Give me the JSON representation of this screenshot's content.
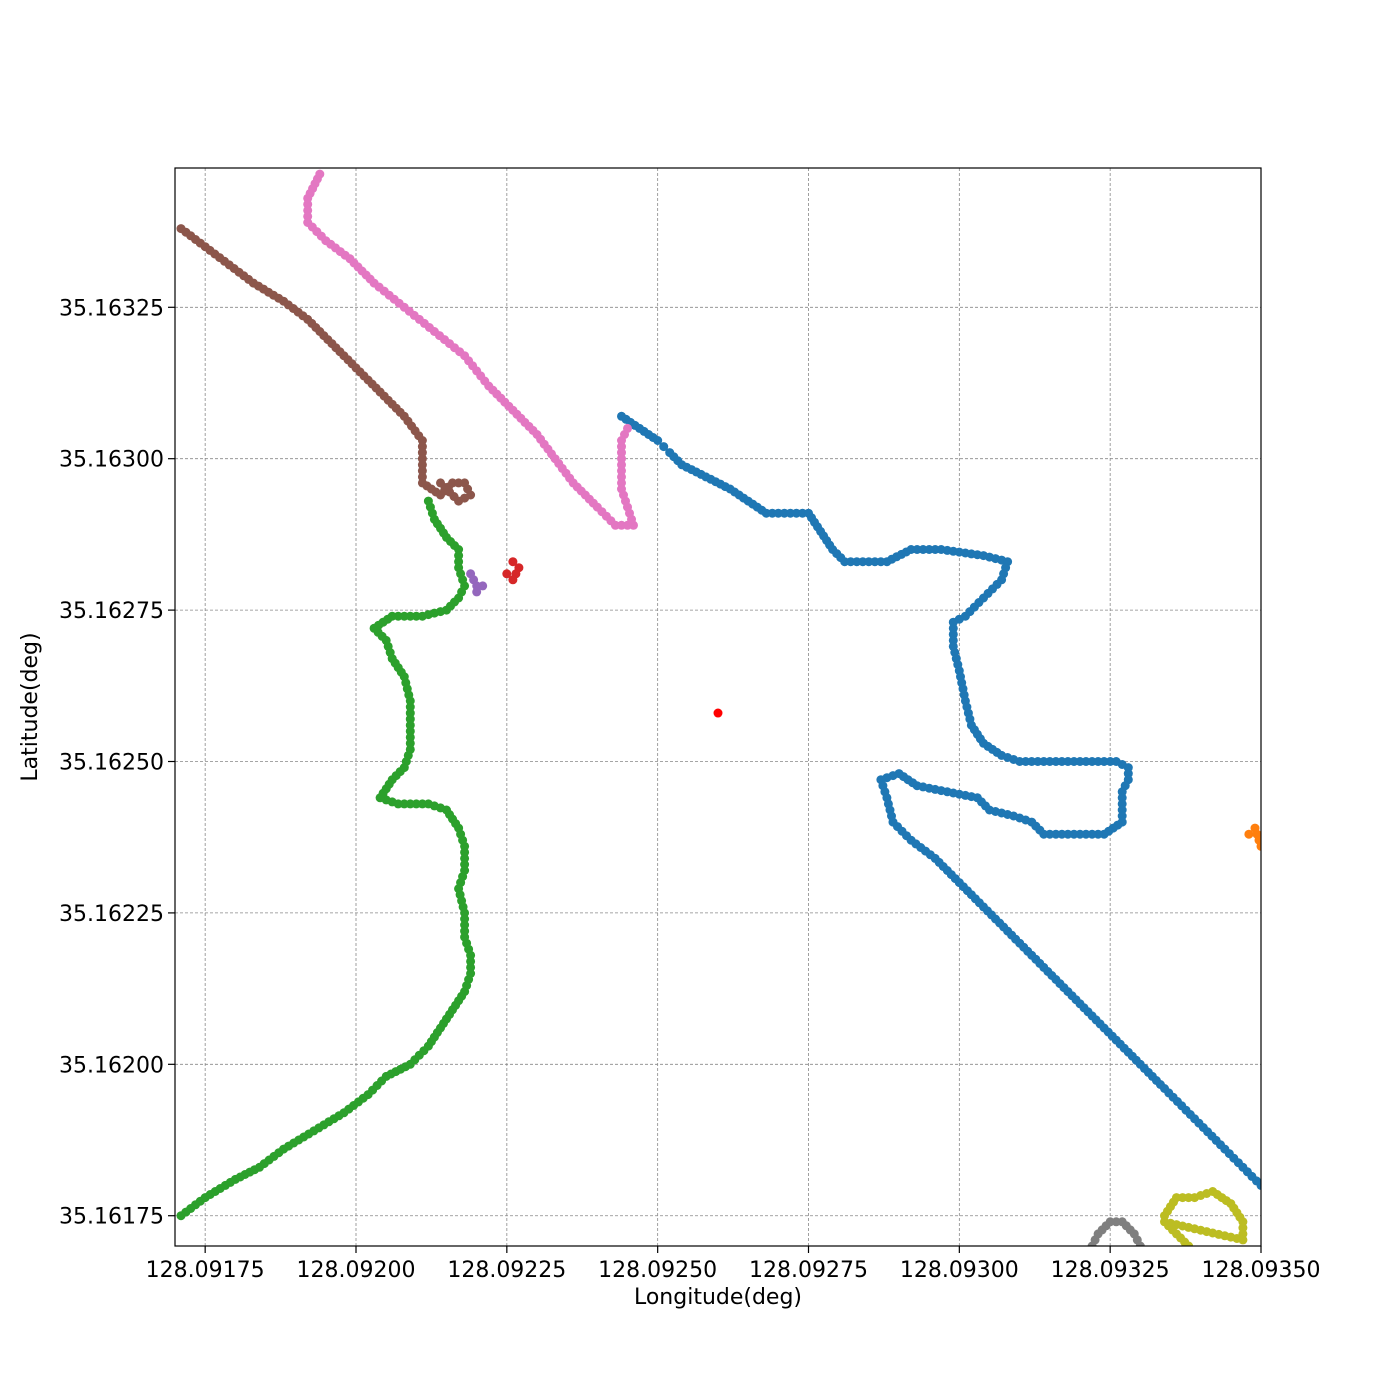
{
  "chart_data": {
    "type": "scatter",
    "xlabel": "Longitude(deg)",
    "ylabel": "Latitude(deg)",
    "xlim": [
      128.0917,
      128.0935
    ],
    "ylim": [
      35.1617,
      35.16348
    ],
    "grid": true,
    "x_ticks": [
      128.09175,
      128.092,
      128.09225,
      128.0925,
      128.09275,
      128.093,
      128.09325,
      128.0935
    ],
    "x_tick_labels": [
      "128.09175",
      "128.09200",
      "128.09225",
      "128.09250",
      "128.09275",
      "128.09300",
      "128.09325",
      "128.09350"
    ],
    "y_ticks": [
      35.16175,
      35.162,
      35.16225,
      35.1625,
      35.16275,
      35.163,
      35.16325
    ],
    "y_tick_labels": [
      "35.16175",
      "35.16200",
      "35.16225",
      "35.16250",
      "35.16275",
      "35.16300",
      "35.16325"
    ],
    "center_point": {
      "x": 128.0926,
      "y": 35.16258,
      "color": "#ff0000"
    },
    "series": [
      {
        "color": "#1f77b4",
        "points": [
          [
            128.09244,
            35.16307
          ],
          [
            128.09247,
            35.16305
          ],
          [
            128.0925,
            35.16303
          ],
          [
            128.09251,
            35.16302
          ],
          [
            128.09252,
            35.16301
          ],
          [
            128.09254,
            35.16299
          ],
          [
            128.09258,
            35.16297
          ],
          [
            128.09262,
            35.16295
          ],
          [
            128.09265,
            35.16293
          ],
          [
            128.09268,
            35.16291
          ],
          [
            128.09275,
            35.16291
          ],
          [
            128.09277,
            35.16288
          ],
          [
            128.09279,
            35.16285
          ],
          [
            128.09281,
            35.16283
          ],
          [
            128.09288,
            35.16283
          ],
          [
            128.09292,
            35.16285
          ],
          [
            128.09297,
            35.16285
          ],
          [
            128.09304,
            35.16284
          ],
          [
            128.09308,
            35.16283
          ],
          [
            128.09307,
            35.1628
          ],
          [
            128.09304,
            35.16277
          ],
          [
            128.09301,
            35.16274
          ],
          [
            128.09299,
            35.16273
          ],
          [
            128.09299,
            35.16269
          ],
          [
            128.093,
            35.16265
          ],
          [
            128.09301,
            35.1626
          ],
          [
            128.09302,
            35.16256
          ],
          [
            128.09304,
            35.16253
          ],
          [
            128.09307,
            35.16251
          ],
          [
            128.0931,
            35.1625
          ],
          [
            128.0932,
            35.1625
          ],
          [
            128.09326,
            35.1625
          ],
          [
            128.09328,
            35.16249
          ],
          [
            128.09328,
            35.16247
          ],
          [
            128.09327,
            35.16245
          ],
          [
            128.09327,
            35.1624
          ],
          [
            128.09324,
            35.16238
          ],
          [
            128.09318,
            35.16238
          ],
          [
            128.09314,
            35.16238
          ],
          [
            128.09312,
            35.1624
          ],
          [
            128.09309,
            35.16241
          ],
          [
            128.09305,
            35.16242
          ],
          [
            128.09303,
            35.16244
          ],
          [
            128.09298,
            35.16245
          ],
          [
            128.09293,
            35.16246
          ],
          [
            128.0929,
            35.16248
          ],
          [
            128.09287,
            35.16247
          ],
          [
            128.09288,
            35.16244
          ],
          [
            128.09289,
            35.1624
          ],
          [
            128.09292,
            35.16237
          ],
          [
            128.09296,
            35.16234
          ],
          [
            128.093,
            35.1623
          ],
          [
            128.09304,
            35.16226
          ],
          [
            128.0931,
            35.1622
          ],
          [
            128.09316,
            35.16214
          ],
          [
            128.09322,
            35.16208
          ],
          [
            128.09328,
            35.16202
          ],
          [
            128.09334,
            35.16196
          ],
          [
            128.09339,
            35.16191
          ],
          [
            128.09344,
            35.16186
          ],
          [
            128.09347,
            35.16183
          ],
          [
            128.0935,
            35.1618
          ]
        ]
      },
      {
        "color": "#ff7f0e",
        "points": [
          [
            128.09348,
            35.16238
          ],
          [
            128.09349,
            35.16239
          ],
          [
            128.0935,
            35.16236
          ]
        ]
      },
      {
        "color": "#2ca02c",
        "points": [
          [
            128.09171,
            35.16175
          ],
          [
            128.09175,
            35.16178
          ],
          [
            128.0918,
            35.16181
          ],
          [
            128.09184,
            35.16183
          ],
          [
            128.09188,
            35.16186
          ],
          [
            128.09193,
            35.16189
          ],
          [
            128.09198,
            35.16192
          ],
          [
            128.09202,
            35.16195
          ],
          [
            128.09205,
            35.16198
          ],
          [
            128.09209,
            35.162
          ],
          [
            128.09212,
            35.16203
          ],
          [
            128.09214,
            35.16206
          ],
          [
            128.09216,
            35.16209
          ],
          [
            128.09218,
            35.16212
          ],
          [
            128.09219,
            35.16215
          ],
          [
            128.09219,
            35.16218
          ],
          [
            128.09218,
            35.16221
          ],
          [
            128.09218,
            35.16225
          ],
          [
            128.09217,
            35.16229
          ],
          [
            128.09218,
            35.16232
          ],
          [
            128.09218,
            35.16236
          ],
          [
            128.09217,
            35.16239
          ],
          [
            128.09215,
            35.16242
          ],
          [
            128.09212,
            35.16243
          ],
          [
            128.09207,
            35.16243
          ],
          [
            128.09204,
            35.16244
          ],
          [
            128.09206,
            35.16247
          ],
          [
            128.09208,
            35.16249
          ],
          [
            128.09209,
            35.16252
          ],
          [
            128.09209,
            35.16256
          ],
          [
            128.09209,
            35.1626
          ],
          [
            128.09208,
            35.16264
          ],
          [
            128.09206,
            35.16267
          ],
          [
            128.09205,
            35.1627
          ],
          [
            128.09203,
            35.16272
          ],
          [
            128.09206,
            35.16274
          ],
          [
            128.09211,
            35.16274
          ],
          [
            128.09215,
            35.16275
          ],
          [
            128.09217,
            35.16277
          ],
          [
            128.09218,
            35.16279
          ],
          [
            128.09217,
            35.16282
          ],
          [
            128.09217,
            35.16285
          ],
          [
            128.09215,
            35.16287
          ],
          [
            128.09213,
            35.1629
          ],
          [
            128.09212,
            35.16293
          ]
        ]
      },
      {
        "color": "#d62728",
        "points": [
          [
            128.09226,
            35.16283
          ],
          [
            128.09227,
            35.16282
          ],
          [
            128.09226,
            35.1628
          ],
          [
            128.09225,
            35.16281
          ]
        ]
      },
      {
        "color": "#9467bd",
        "points": [
          [
            128.09219,
            35.16281
          ],
          [
            128.0922,
            35.16279
          ],
          [
            128.09221,
            35.16279
          ],
          [
            128.0922,
            35.16278
          ]
        ]
      },
      {
        "color": "#8c564b",
        "points": [
          [
            128.09171,
            35.16338
          ],
          [
            128.09175,
            35.16335
          ],
          [
            128.09179,
            35.16332
          ],
          [
            128.09183,
            35.16329
          ],
          [
            128.09188,
            35.16326
          ],
          [
            128.09192,
            35.16323
          ],
          [
            128.09196,
            35.16319
          ],
          [
            128.092,
            35.16315
          ],
          [
            128.09204,
            35.16311
          ],
          [
            128.09208,
            35.16307
          ],
          [
            128.09211,
            35.16303
          ],
          [
            128.09211,
            35.16299
          ],
          [
            128.09211,
            35.16296
          ],
          [
            128.09214,
            35.16294
          ],
          [
            128.09216,
            35.16296
          ],
          [
            128.09218,
            35.16296
          ],
          [
            128.09219,
            35.16294
          ],
          [
            128.09217,
            35.16293
          ],
          [
            128.09214,
            35.16296
          ]
        ]
      },
      {
        "color": "#e377c2",
        "points": [
          [
            128.09194,
            35.16347
          ],
          [
            128.09192,
            35.16343
          ],
          [
            128.09192,
            35.16339
          ],
          [
            128.09195,
            35.16336
          ],
          [
            128.09199,
            35.16333
          ],
          [
            128.09203,
            35.16329
          ],
          [
            128.09208,
            35.16325
          ],
          [
            128.09213,
            35.16321
          ],
          [
            128.09218,
            35.16317
          ],
          [
            128.09222,
            35.16312
          ],
          [
            128.09226,
            35.16308
          ],
          [
            128.0923,
            35.16304
          ],
          [
            128.09233,
            35.163
          ],
          [
            128.09236,
            35.16296
          ],
          [
            128.0924,
            35.16292
          ],
          [
            128.09243,
            35.16289
          ],
          [
            128.09246,
            35.16289
          ],
          [
            128.09245,
            35.16292
          ],
          [
            128.09244,
            35.16295
          ],
          [
            128.09244,
            35.16299
          ],
          [
            128.09244,
            35.16303
          ],
          [
            128.09245,
            35.16305
          ]
        ]
      },
      {
        "color": "#7f7f7f",
        "points": [
          [
            128.09322,
            35.1617
          ],
          [
            128.09323,
            35.16172
          ],
          [
            128.09325,
            35.16174
          ],
          [
            128.09327,
            35.16174
          ],
          [
            128.09329,
            35.16172
          ],
          [
            128.0933,
            35.1617
          ]
        ]
      },
      {
        "color": "#bcbd22",
        "points": [
          [
            128.09334,
            35.16175
          ],
          [
            128.09336,
            35.16178
          ],
          [
            128.09339,
            35.16178
          ],
          [
            128.09342,
            35.16179
          ],
          [
            128.09345,
            35.16177
          ],
          [
            128.09347,
            35.16174
          ],
          [
            128.09347,
            35.16171
          ],
          [
            128.09334,
            35.16174
          ],
          [
            128.09336,
            35.16172
          ],
          [
            128.09338,
            35.1617
          ]
        ]
      }
    ]
  }
}
